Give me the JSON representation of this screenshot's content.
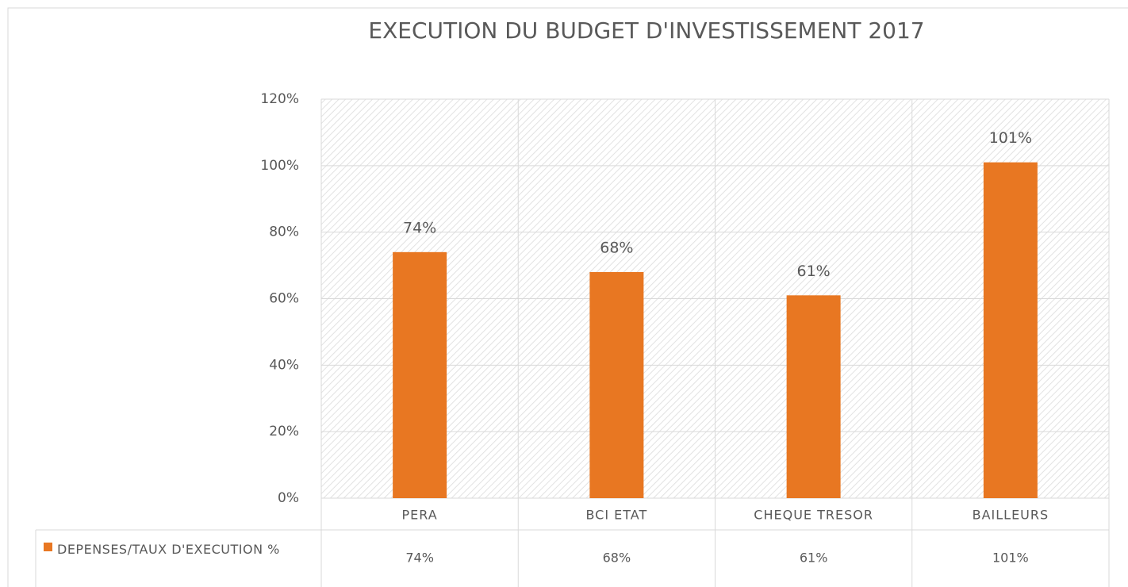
{
  "chart_data": {
    "type": "bar",
    "title": "EXECUTION DU BUDGET D'INVESTISSEMENT 2017",
    "categories": [
      "PERA",
      "BCI ETAT",
      "CHEQUE TRESOR",
      "BAILLEURS"
    ],
    "series": [
      {
        "name": "DEPENSES/TAUX D'EXECUTION %",
        "color": "#e87722",
        "values": [
          74,
          68,
          61,
          101
        ],
        "value_labels": [
          "74%",
          "68%",
          "61%",
          "101%"
        ]
      }
    ],
    "ylim": [
      0,
      120
    ],
    "yticks": [
      {
        "value": 0,
        "label": "0%"
      },
      {
        "value": 20,
        "label": "20%"
      },
      {
        "value": 40,
        "label": "40%"
      },
      {
        "value": 60,
        "label": "60%"
      },
      {
        "value": 80,
        "label": "80%"
      },
      {
        "value": 100,
        "label": "100%"
      },
      {
        "value": 120,
        "label": "120%"
      }
    ],
    "grid": true
  }
}
